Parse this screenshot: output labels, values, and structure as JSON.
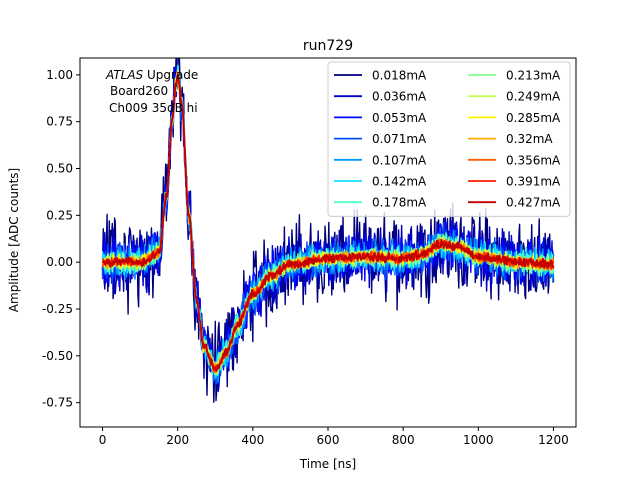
{
  "chart_data": {
    "type": "line",
    "title": "run729",
    "xlabel": "Time [ns]",
    "ylabel": "Amplitude [ADC counts]",
    "xlim": [
      -60,
      1260
    ],
    "ylim": [
      -0.88,
      1.09
    ],
    "xticks": [
      0,
      200,
      400,
      600,
      800,
      1000,
      1200
    ],
    "yticks": [
      -0.75,
      -0.5,
      -0.25,
      0.0,
      0.25,
      0.5,
      0.75,
      1.0
    ],
    "grid": false,
    "legend_position": "top-right",
    "legend_columns": 2,
    "annotation": {
      "line1_italic": "ATLAS",
      "line1_rest": " Upgrade",
      "line2": "Board260",
      "line3": "Ch009 35dB hi"
    },
    "series": [
      {
        "name": "0.018mA",
        "color": "#00007f",
        "noise": 0.2
      },
      {
        "name": "0.036mA",
        "color": "#0000c4",
        "noise": 0.14
      },
      {
        "name": "0.053mA",
        "color": "#0008ff",
        "noise": 0.11
      },
      {
        "name": "0.071mA",
        "color": "#0050ff",
        "noise": 0.09
      },
      {
        "name": "0.107mA",
        "color": "#0098ff",
        "noise": 0.075
      },
      {
        "name": "0.142mA",
        "color": "#12e0ff",
        "noise": 0.06
      },
      {
        "name": "0.178mA",
        "color": "#50ffc6",
        "noise": 0.05
      },
      {
        "name": "0.213mA",
        "color": "#87ff8f",
        "noise": 0.043
      },
      {
        "name": "0.249mA",
        "color": "#c6ff50",
        "noise": 0.037
      },
      {
        "name": "0.285mA",
        "color": "#fff400",
        "noise": 0.032
      },
      {
        "name": "0.32mA",
        "color": "#ffaa00",
        "noise": 0.028
      },
      {
        "name": "0.356mA",
        "color": "#ff6000",
        "noise": 0.025
      },
      {
        "name": "0.391mA",
        "color": "#ff1a00",
        "noise": 0.022
      },
      {
        "name": "0.427mA",
        "color": "#c40000",
        "noise": 0.02
      }
    ],
    "mean_pulse": {
      "x_ns": [
        0,
        100,
        150,
        170,
        185,
        195,
        200,
        210,
        230,
        250,
        270,
        300,
        330,
        360,
        400,
        450,
        500,
        600,
        700,
        800,
        850,
        900,
        950,
        1000,
        1100,
        1200
      ],
      "amplitude": [
        0.0,
        0.0,
        0.05,
        0.35,
        0.75,
        0.95,
        1.0,
        0.85,
        0.25,
        -0.2,
        -0.45,
        -0.57,
        -0.48,
        -0.33,
        -0.17,
        -0.07,
        -0.01,
        0.02,
        0.03,
        0.02,
        0.04,
        0.1,
        0.08,
        0.03,
        0.0,
        -0.01
      ]
    }
  }
}
